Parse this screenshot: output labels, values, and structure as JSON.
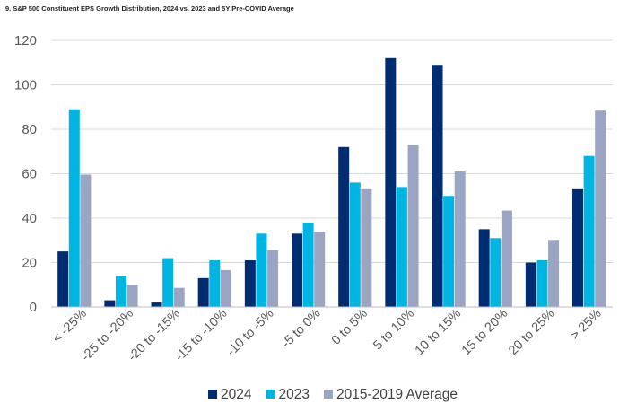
{
  "chart_data": {
    "type": "bar",
    "title": "9. S&P 500 Constituent EPS Growth Distribution, 2024 vs. 2023 and 5Y Pre-COVID Average",
    "xlabel": "",
    "ylabel": "",
    "ylim": [
      0,
      120
    ],
    "yticks": [
      0,
      20,
      40,
      60,
      80,
      100,
      120
    ],
    "grid": true,
    "legend_position": "bottom",
    "categories": [
      "< -25%",
      "-25 to -20%",
      "-20 to -15%",
      "-15 to -10%",
      "-10 to -5%",
      "-5 to 0%",
      "0 to 5%",
      "5 to 10%",
      "10 to 15%",
      "15 to 20%",
      "20 to 25%",
      "> 25%"
    ],
    "series": [
      {
        "name": "2024",
        "color": "#002D72",
        "values": [
          25,
          3,
          2,
          13,
          21,
          33,
          72,
          112,
          109,
          35,
          20,
          53
        ]
      },
      {
        "name": "2023",
        "color": "#00B5E2",
        "values": [
          89,
          14,
          22,
          21,
          33,
          38,
          56,
          54,
          50,
          31,
          21,
          68
        ]
      },
      {
        "name": "2015-2019 Average",
        "color": "#9AA5C4",
        "values": [
          59.6,
          10,
          8.6,
          16.6,
          25.6,
          33.8,
          53,
          73,
          61,
          43.4,
          30.2,
          88.4
        ]
      }
    ]
  }
}
